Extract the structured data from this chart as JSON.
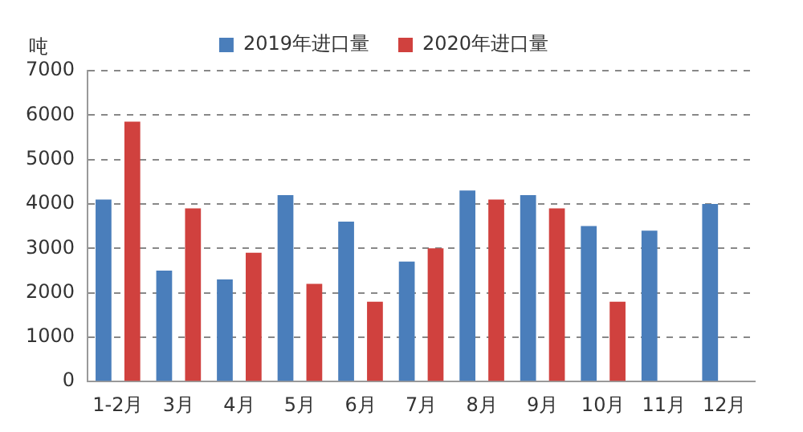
{
  "chart_data": {
    "type": "bar",
    "ylabel": "吨",
    "categories": [
      "1-2月",
      "3月",
      "4月",
      "5月",
      "6月",
      "7月",
      "8月",
      "9月",
      "10月",
      "11月",
      "12月"
    ],
    "series": [
      {
        "name": "2019年进口量",
        "color": "#4a7ebb",
        "values": [
          4100,
          2500,
          2300,
          4200,
          3600,
          2700,
          4300,
          4200,
          3500,
          3400,
          4000
        ]
      },
      {
        "name": "2020年进口量",
        "color": "#d0413e",
        "values": [
          5850,
          3900,
          2900,
          2200,
          1800,
          3000,
          4100,
          3900,
          1800,
          null,
          null
        ]
      }
    ],
    "ylim": [
      0,
      7000
    ],
    "yticks": [
      0,
      1000,
      2000,
      3000,
      4000,
      5000,
      6000,
      7000
    ],
    "grid": "y",
    "legend": "top"
  }
}
